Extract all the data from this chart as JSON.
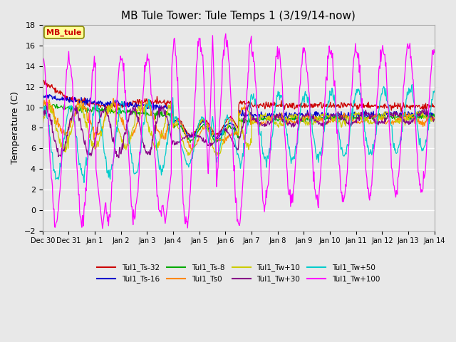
{
  "title": "MB Tule Tower: Tule Temps 1 (3/19/14-now)",
  "ylabel": "Temperature (C)",
  "legend_box_label": "MB_tule",
  "ylim": [
    -2,
    18
  ],
  "yticks": [
    -2,
    0,
    2,
    4,
    6,
    8,
    10,
    12,
    14,
    16,
    18
  ],
  "x_labels": [
    "Dec 30",
    "Dec 31",
    "Jan 1",
    "Jan 2",
    "Jan 3",
    "Jan 4",
    "Jan 5",
    "Jan 6",
    "Jan 7",
    "Jan 8",
    "Jan 9",
    "Jan 10",
    "Jan 11",
    "Jan 12",
    "Jan 13",
    "Jan 14"
  ],
  "series": [
    {
      "label": "Tul1_Ts-32",
      "color": "#cc0000"
    },
    {
      "label": "Tul1_Ts-16",
      "color": "#0000cc"
    },
    {
      "label": "Tul1_Ts-8",
      "color": "#00aa00"
    },
    {
      "label": "Tul1_Ts0",
      "color": "#ff8800"
    },
    {
      "label": "Tul1_Tw+10",
      "color": "#cccc00"
    },
    {
      "label": "Tul1_Tw+30",
      "color": "#880088"
    },
    {
      "label": "Tul1_Tw+50",
      "color": "#00cccc"
    },
    {
      "label": "Tul1_Tw+100",
      "color": "#ff00ff"
    }
  ],
  "bg_color": "#e8e8e8",
  "plot_bg": "#e8e8e8",
  "grid_color": "#ffffff",
  "legend_ncol": 4,
  "legend_rows": 2
}
